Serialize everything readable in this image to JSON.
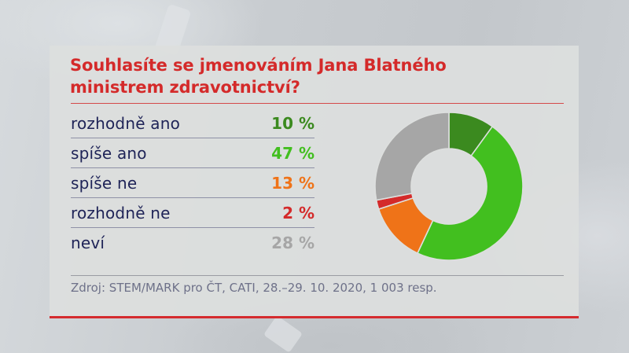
{
  "title": {
    "line1": "Souhlasíte se jmenováním Jana Blatného",
    "line2": "ministrem zdravotnictví?"
  },
  "rows": [
    {
      "label": "rozhodně ano",
      "value": "10 %",
      "color": "#3b8a1f"
    },
    {
      "label": "spíše ano",
      "value": "47 %",
      "color": "#42bf1f"
    },
    {
      "label": "spíše ne",
      "value": "13 %",
      "color": "#ef7318"
    },
    {
      "label": "rozhodně ne",
      "value": "2 %",
      "color": "#d42a2a"
    },
    {
      "label": "neví",
      "value": "28 %",
      "color": "#a6a6a6"
    }
  ],
  "source": "Zdroj: STEM/MARK pro ČT, CATI, 28.–29. 10. 2020, 1 003 resp.",
  "chart_data": {
    "type": "pie",
    "subtype": "donut",
    "title": "Souhlasíte se jmenováním Jana Blatného ministrem zdravotnictví?",
    "categories": [
      "rozhodně ano",
      "spíše ano",
      "spíše ne",
      "rozhodně ne",
      "neví"
    ],
    "values": [
      10,
      47,
      13,
      2,
      28
    ],
    "unit": "%",
    "colors": [
      "#3b8a1f",
      "#42bf1f",
      "#ef7318",
      "#d42a2a",
      "#a6a6a6"
    ],
    "start_angle": "12 o'clock, clockwise",
    "legend": "left, as table with values"
  }
}
